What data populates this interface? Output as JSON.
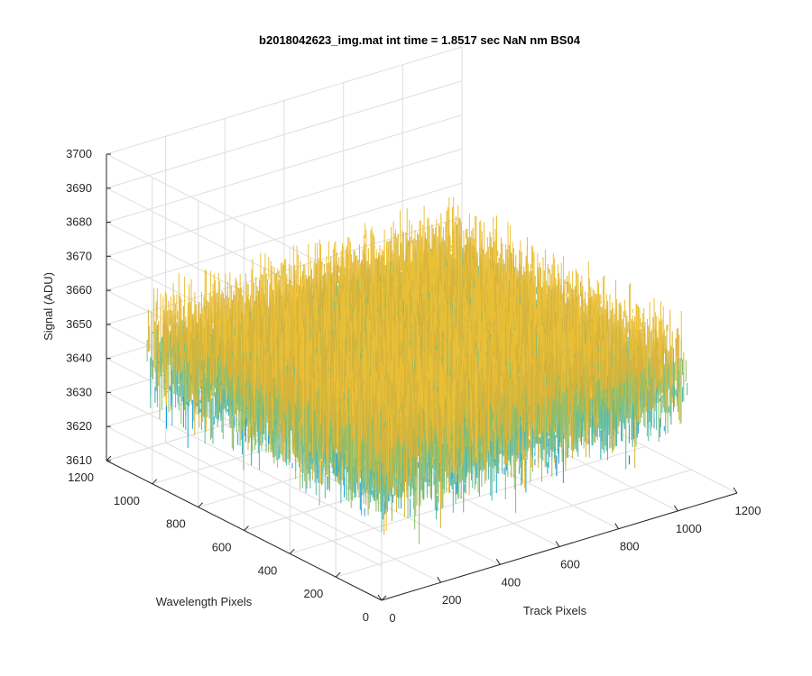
{
  "chart_data": {
    "type": "surface3d",
    "title": "b2018042623_img.mat int time = 1.8517 sec  NaN nm BS04",
    "zlabel": "Signal (ADU)",
    "xlabel": "Track Pixels",
    "ylabel": "Wavelength Pixels",
    "xlim": [
      0,
      1200
    ],
    "ylim": [
      0,
      1200
    ],
    "zlim": [
      3610,
      3700
    ],
    "x_ticks": [
      "0",
      "200",
      "400",
      "600",
      "800",
      "1000",
      "1200"
    ],
    "y_ticks": [
      "0",
      "200",
      "400",
      "600",
      "800",
      "1000",
      "1200"
    ],
    "z_ticks": [
      "3610",
      "3620",
      "3630",
      "3640",
      "3650",
      "3660",
      "3670",
      "3680",
      "3690",
      "3700"
    ],
    "data_extent": {
      "x": [
        1,
        1024
      ],
      "y": [
        1,
        1024
      ]
    },
    "signal_mean": 3648,
    "signal_typical_range": [
      3625,
      3670
    ],
    "grid": true,
    "legend": "none",
    "colormap": [
      "#0072bd",
      "#1fa2cf",
      "#55b9a8",
      "#8cbd6a",
      "#d9b43a",
      "#edc035"
    ]
  }
}
